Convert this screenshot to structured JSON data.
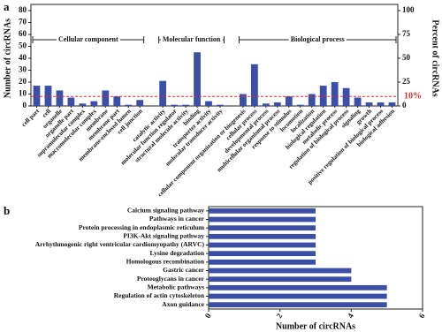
{
  "chart_data": [
    {
      "type": "bar",
      "panel": "a",
      "ylabel": "Number of circRNAs",
      "y2label": "Percent of circRNAs",
      "groups": [
        "Cellular component",
        "Molecular function",
        "Biological process"
      ],
      "categories": [
        "cell part",
        "cell",
        "organelle",
        "organelle part",
        "supramolecular complex",
        "macromolecular complex",
        "membrane",
        "membrane part",
        "membrane-enclosed lumen",
        "cell junction",
        null,
        "catalytic activity",
        "molecular function regulator",
        "structural molecule activity",
        "binding",
        "transporter activity",
        "molecular transducer activity",
        null,
        "cellular component organization or biogenesis",
        "cellular process",
        "developmental process",
        "multicellular organismal process",
        "response to stimulus",
        "locomotion",
        "localization",
        "biological regulation",
        "metabolic process",
        "regulation of biological process",
        "signaling",
        "growth",
        "positive regulation of biological process",
        "biological adhesion"
      ],
      "values": [
        17,
        17,
        13,
        7,
        2,
        4,
        13,
        8,
        1,
        5,
        null,
        21,
        1,
        1,
        45,
        4,
        1,
        null,
        10,
        35,
        2,
        3,
        8,
        1,
        10,
        17,
        20,
        15,
        7,
        3,
        3,
        3
      ],
      "color": "#3c4fa6",
      "ylim": [
        0,
        80
      ],
      "yticks": [
        0,
        10,
        20,
        30,
        40,
        50,
        60,
        70,
        80
      ],
      "y2lim": [
        0,
        100
      ],
      "y2ticks": [
        0,
        25,
        50,
        75,
        100
      ],
      "reference_line": {
        "value": 10,
        "label": "10%",
        "axis": "y2",
        "color": "#d9302a"
      }
    },
    {
      "type": "hbar",
      "panel": "b",
      "xlabel": "Number of circRNAs",
      "categories": [
        "Calcium signaling pathway",
        "Pathways in cancer",
        "Protein processing in endoplasmic reticulum",
        "PI3K-Akt signaling pathway",
        "Arrhythmogenic right ventricular cardiomyopathy (ARVC)",
        "Lysine degradation",
        "Homologous recombination",
        "Gastric cancer",
        "Proteoglycans in cancer",
        "Metabolic pathways",
        "Regulation of actin cytoskeleton",
        "Axon guidance"
      ],
      "values": [
        3,
        3,
        3,
        3,
        3,
        3,
        3,
        4,
        4,
        5,
        5,
        5
      ],
      "color": "#3c4fa6",
      "xlim": [
        0,
        6
      ],
      "xticks": [
        0,
        2,
        4,
        6
      ]
    }
  ]
}
